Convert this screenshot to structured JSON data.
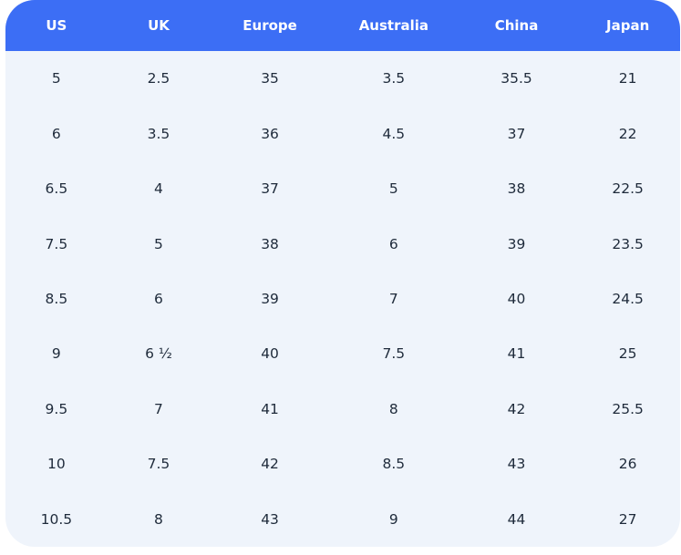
{
  "table": {
    "name": "shoe-size-conversion",
    "columns": [
      "US",
      "UK",
      "Europe",
      "Australia",
      "China",
      "Japan"
    ],
    "rows": [
      [
        "5",
        "2.5",
        "35",
        "3.5",
        "35.5",
        "21"
      ],
      [
        "6",
        "3.5",
        "36",
        "4.5",
        "37",
        "22"
      ],
      [
        "6.5",
        "4",
        "37",
        "5",
        "38",
        "22.5"
      ],
      [
        "7.5",
        "5",
        "38",
        "6",
        "39",
        "23.5"
      ],
      [
        "8.5",
        "6",
        "39",
        "7",
        "40",
        "24.5"
      ],
      [
        "9",
        "6 ½",
        "40",
        "7.5",
        "41",
        "25"
      ],
      [
        "9.5",
        "7",
        "41",
        "8",
        "42",
        "25.5"
      ],
      [
        "10",
        "7.5",
        "42",
        "8.5",
        "43",
        "26"
      ],
      [
        "10.5",
        "8",
        "43",
        "9",
        "44",
        "27"
      ]
    ]
  },
  "colors": {
    "header_bg": "#3C6EF5",
    "header_text": "#FFFFFF",
    "body_bg": "#EFF4FB",
    "body_text": "#1E2A3A",
    "page_bg": "#FFFFFF"
  }
}
